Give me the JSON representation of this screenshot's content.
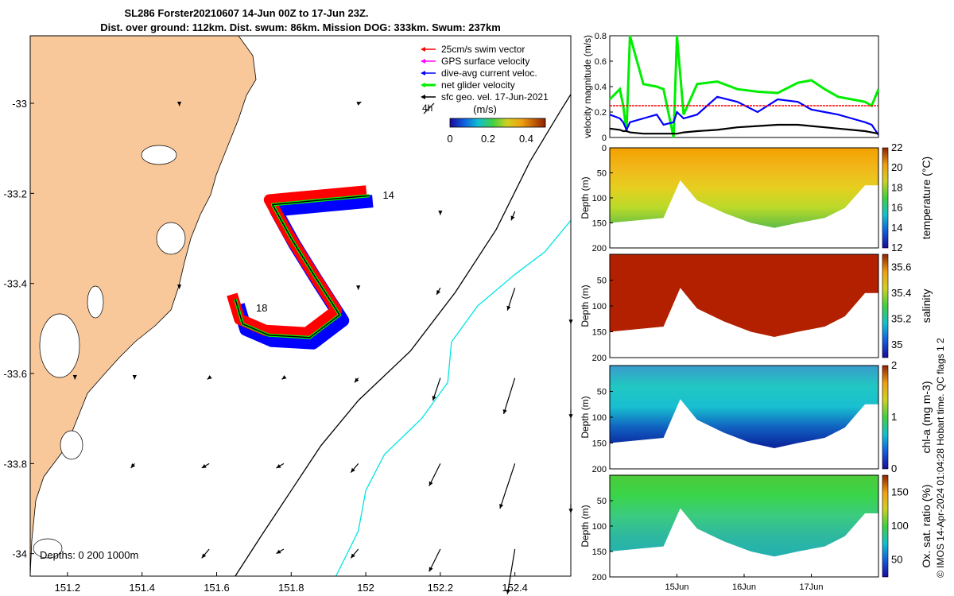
{
  "header": {
    "title_line1": "SL286 Forster20210607 14-Jun 00Z to 17-Jun 23Z.",
    "title_line2": "Dist. over ground: 112km. Dist. swum: 86km. Mission DOG: 333km. Swum: 237km"
  },
  "credit": "© IMOS 14-Apr-2024 01:04:28 Hobart time. QC flags 1  2",
  "colors": {
    "land": "#F8C89A",
    "swim_vector": "#FF0000",
    "gps_velocity": "#FF00FF",
    "dive_avg": "#0000FF",
    "net_velocity": "#00EE00",
    "sfc_geo": "#000000",
    "shelf_contour": "#000000",
    "slope_contour": "#00E5E5"
  },
  "map": {
    "lon_range": [
      151.1,
      152.55
    ],
    "lat_range": [
      -34.05,
      -32.85
    ],
    "x_ticks": [
      "151.2",
      "151.4",
      "151.6",
      "151.8",
      "152",
      "152.2",
      "152.4"
    ],
    "y_ticks": [
      "-33",
      "-33.2",
      "-33.4",
      "-33.6",
      "-33.8",
      "-34"
    ],
    "legend": [
      {
        "label": "25cm/s swim vector",
        "color": "#FF0000"
      },
      {
        "label": "GPS surface velocity",
        "color": "#FF00FF"
      },
      {
        "label": "dive-avg current veloc.",
        "color": "#0000FF"
      },
      {
        "label": "net glider velocity",
        "color": "#00EE00"
      },
      {
        "label": "sfc geo. vel. 17-Jun-2021",
        "color": "#000000"
      }
    ],
    "scale_arrow_label": "4h",
    "colorbar_unit": "(m/s)",
    "colorbar_ticks": [
      "0",
      "0.2",
      "0.4"
    ],
    "depths_label": "Depths: 0   200 1000m",
    "day_labels": [
      {
        "text": "14",
        "lon": 152.02,
        "lat": -33.205
      },
      {
        "text": "18",
        "lon": 151.68,
        "lat": -33.455
      }
    ],
    "track": [
      [
        152.01,
        -33.205
      ],
      [
        151.88,
        -33.215
      ],
      [
        151.75,
        -33.225
      ],
      [
        151.8,
        -33.3
      ],
      [
        151.86,
        -33.38
      ],
      [
        151.93,
        -33.47
      ],
      [
        151.85,
        -33.52
      ],
      [
        151.74,
        -33.515
      ],
      [
        151.67,
        -33.49
      ],
      [
        151.65,
        -33.435
      ]
    ],
    "shelf_contour": [
      [
        152.55,
        -32.98
      ],
      [
        152.52,
        -33.02
      ],
      [
        152.44,
        -33.13
      ],
      [
        152.35,
        -33.28
      ],
      [
        152.24,
        -33.42
      ],
      [
        152.12,
        -33.55
      ],
      [
        151.98,
        -33.66
      ],
      [
        151.88,
        -33.76
      ],
      [
        151.8,
        -33.86
      ],
      [
        151.72,
        -33.96
      ],
      [
        151.65,
        -34.05
      ]
    ],
    "slope_contour": [
      [
        152.55,
        -33.26
      ],
      [
        152.48,
        -33.33
      ],
      [
        152.4,
        -33.38
      ],
      [
        152.3,
        -33.45
      ],
      [
        152.23,
        -33.53
      ],
      [
        152.22,
        -33.62
      ],
      [
        152.15,
        -33.7
      ],
      [
        152.05,
        -33.78
      ],
      [
        152.0,
        -33.86
      ],
      [
        151.98,
        -33.95
      ],
      [
        151.92,
        -34.05
      ]
    ],
    "geo_vectors": [
      [
        151.5,
        -33.0,
        0.0,
        -0.006
      ],
      [
        151.98,
        -33.0,
        0.008,
        0.003
      ],
      [
        152.2,
        -33.24,
        0.0,
        -0.008
      ],
      [
        152.4,
        -33.24,
        -0.01,
        -0.02
      ],
      [
        151.98,
        -33.41,
        0.0,
        -0.004
      ],
      [
        151.5,
        -33.41,
        0.0,
        -0.002
      ],
      [
        152.2,
        -33.41,
        -0.01,
        -0.015
      ],
      [
        152.4,
        -33.41,
        -0.02,
        -0.05
      ],
      [
        152.55,
        -33.48,
        0.0,
        -0.01
      ],
      [
        151.22,
        -33.61,
        0.0,
        -0.003
      ],
      [
        151.38,
        -33.61,
        0.0,
        -0.003
      ],
      [
        151.58,
        -33.61,
        -0.005,
        -0.003
      ],
      [
        151.78,
        -33.61,
        -0.005,
        -0.003
      ],
      [
        151.98,
        -33.61,
        -0.01,
        -0.01
      ],
      [
        152.2,
        -33.61,
        -0.02,
        -0.05
      ],
      [
        152.4,
        -33.61,
        -0.03,
        -0.08
      ],
      [
        152.55,
        -33.68,
        0.0,
        -0.02
      ],
      [
        151.38,
        -33.8,
        -0.01,
        -0.01
      ],
      [
        151.58,
        -33.8,
        -0.02,
        -0.01
      ],
      [
        151.78,
        -33.8,
        -0.02,
        -0.01
      ],
      [
        151.98,
        -33.8,
        -0.02,
        -0.02
      ],
      [
        152.2,
        -33.8,
        -0.03,
        -0.05
      ],
      [
        152.4,
        -33.8,
        -0.04,
        -0.1
      ],
      [
        152.55,
        -33.89,
        0.0,
        -0.02
      ],
      [
        151.58,
        -33.99,
        -0.02,
        -0.02
      ],
      [
        151.78,
        -33.99,
        -0.02,
        -0.01
      ],
      [
        151.98,
        -33.99,
        -0.02,
        -0.02
      ],
      [
        152.2,
        -33.99,
        -0.03,
        -0.05
      ],
      [
        152.4,
        -33.99,
        -0.02,
        -0.1
      ]
    ]
  },
  "chart_data": [
    {
      "type": "line",
      "title": "",
      "ylabel": "velocity magnitude (m/s)",
      "ylim": [
        0,
        0.8
      ],
      "y_ticks": [
        "0",
        "0.2",
        "0.4",
        "0.6",
        "0.8"
      ],
      "xlim_days": [
        14.0,
        18.0
      ],
      "x": [
        14.0,
        14.15,
        14.2,
        14.25,
        14.3,
        14.5,
        14.7,
        14.8,
        14.95,
        15.0,
        15.1,
        15.3,
        15.6,
        15.9,
        16.2,
        16.5,
        16.8,
        17.0,
        17.2,
        17.4,
        17.6,
        17.8,
        17.9,
        18.0
      ],
      "series": [
        {
          "name": "net glider velocity",
          "color": "#00EE00",
          "values": [
            0.3,
            0.38,
            0.25,
            0.05,
            0.8,
            0.42,
            0.4,
            0.38,
            0.0,
            0.8,
            0.18,
            0.42,
            0.44,
            0.38,
            0.36,
            0.35,
            0.43,
            0.45,
            0.38,
            0.32,
            0.3,
            0.28,
            0.25,
            0.38
          ]
        },
        {
          "name": "dive-avg current veloc.",
          "color": "#0000FF",
          "values": [
            0.18,
            0.15,
            0.12,
            0.06,
            0.12,
            0.15,
            0.18,
            0.1,
            0.12,
            0.2,
            0.15,
            0.18,
            0.32,
            0.28,
            0.2,
            0.3,
            0.28,
            0.22,
            0.2,
            0.18,
            0.15,
            0.12,
            0.1,
            0.02
          ]
        },
        {
          "name": "sfc geo",
          "color": "#000000",
          "values": [
            0.07,
            0.06,
            0.05,
            0.05,
            0.04,
            0.03,
            0.03,
            0.03,
            0.03,
            0.03,
            0.04,
            0.05,
            0.06,
            0.08,
            0.09,
            0.1,
            0.1,
            0.09,
            0.08,
            0.07,
            0.06,
            0.05,
            0.04,
            0.03
          ]
        },
        {
          "name": "25cm/s swim vector",
          "color": "#FF0000",
          "values": [
            0.25,
            0.25,
            0.25,
            0.25,
            0.25,
            0.25,
            0.25,
            0.25,
            0.25,
            0.25,
            0.25,
            0.25,
            0.25,
            0.25,
            0.25,
            0.25,
            0.25,
            0.25,
            0.25,
            0.25,
            0.25,
            0.25,
            0.25,
            0.25
          ]
        }
      ]
    },
    {
      "type": "heatmap",
      "variable": "temperature",
      "colorbar_label": "temperature (°C)",
      "colorbar_ticks": [
        "12",
        "14",
        "16",
        "18",
        "20",
        "22"
      ],
      "ylabel": "Depth (m)",
      "ylim": [
        0,
        200
      ],
      "y_ticks": [
        "0",
        "50",
        "100",
        "150",
        "200"
      ],
      "depth_range_values": [
        12,
        22
      ],
      "bottom_depth_x": [
        14.0,
        14.4,
        14.8,
        15.05,
        15.3,
        15.7,
        16.1,
        16.45,
        16.8,
        17.2,
        17.5,
        17.8,
        18.0
      ],
      "bottom_depth_y": [
        150,
        145,
        140,
        65,
        105,
        130,
        150,
        160,
        150,
        140,
        120,
        75,
        75
      ],
      "gradient": [
        "#F4A000",
        "#F1B71A",
        "#E6CF1F",
        "#B9DA2A",
        "#5FBD46"
      ]
    },
    {
      "type": "heatmap",
      "variable": "salinity",
      "colorbar_label": "salinity",
      "colorbar_ticks": [
        "35",
        "35.2",
        "35.4",
        "35.6"
      ],
      "ylabel": "Depth (m)",
      "ylim": [
        0,
        200
      ],
      "y_ticks": [
        "50",
        "100",
        "150",
        "200"
      ],
      "depth_range_values": [
        34.9,
        35.7
      ],
      "gradient": [
        "#B22000",
        "#B22000",
        "#B22000",
        "#B22000",
        "#B22000"
      ]
    },
    {
      "type": "heatmap",
      "variable": "chl-a",
      "colorbar_label": "chl-a (mg m-3)",
      "colorbar_ticks": [
        "0",
        "1",
        "2"
      ],
      "ylabel": "Depth (m)",
      "ylim": [
        0,
        200
      ],
      "y_ticks": [
        "50",
        "100",
        "150",
        "200"
      ],
      "depth_range_values": [
        0,
        2
      ],
      "gradient": [
        "#3A9BCC",
        "#21C7C2",
        "#18BFD0",
        "#1060C0",
        "#0A1F9A"
      ]
    },
    {
      "type": "heatmap",
      "variable": "oxygen saturation",
      "colorbar_label": "Ox. sat. ratio (%)",
      "colorbar_ticks": [
        "50",
        "100",
        "150"
      ],
      "ylabel": "Depth (m)",
      "ylim": [
        0,
        200
      ],
      "y_ticks": [
        "50",
        "100",
        "150",
        "200"
      ],
      "depth_range_values": [
        25,
        175
      ],
      "x_ticks": [
        "15Jun",
        "16Jun",
        "17Jun"
      ],
      "gradient": [
        "#4CCB3A",
        "#3AD44A",
        "#3ACB80",
        "#2EB8A0",
        "#22B0B0"
      ]
    }
  ]
}
